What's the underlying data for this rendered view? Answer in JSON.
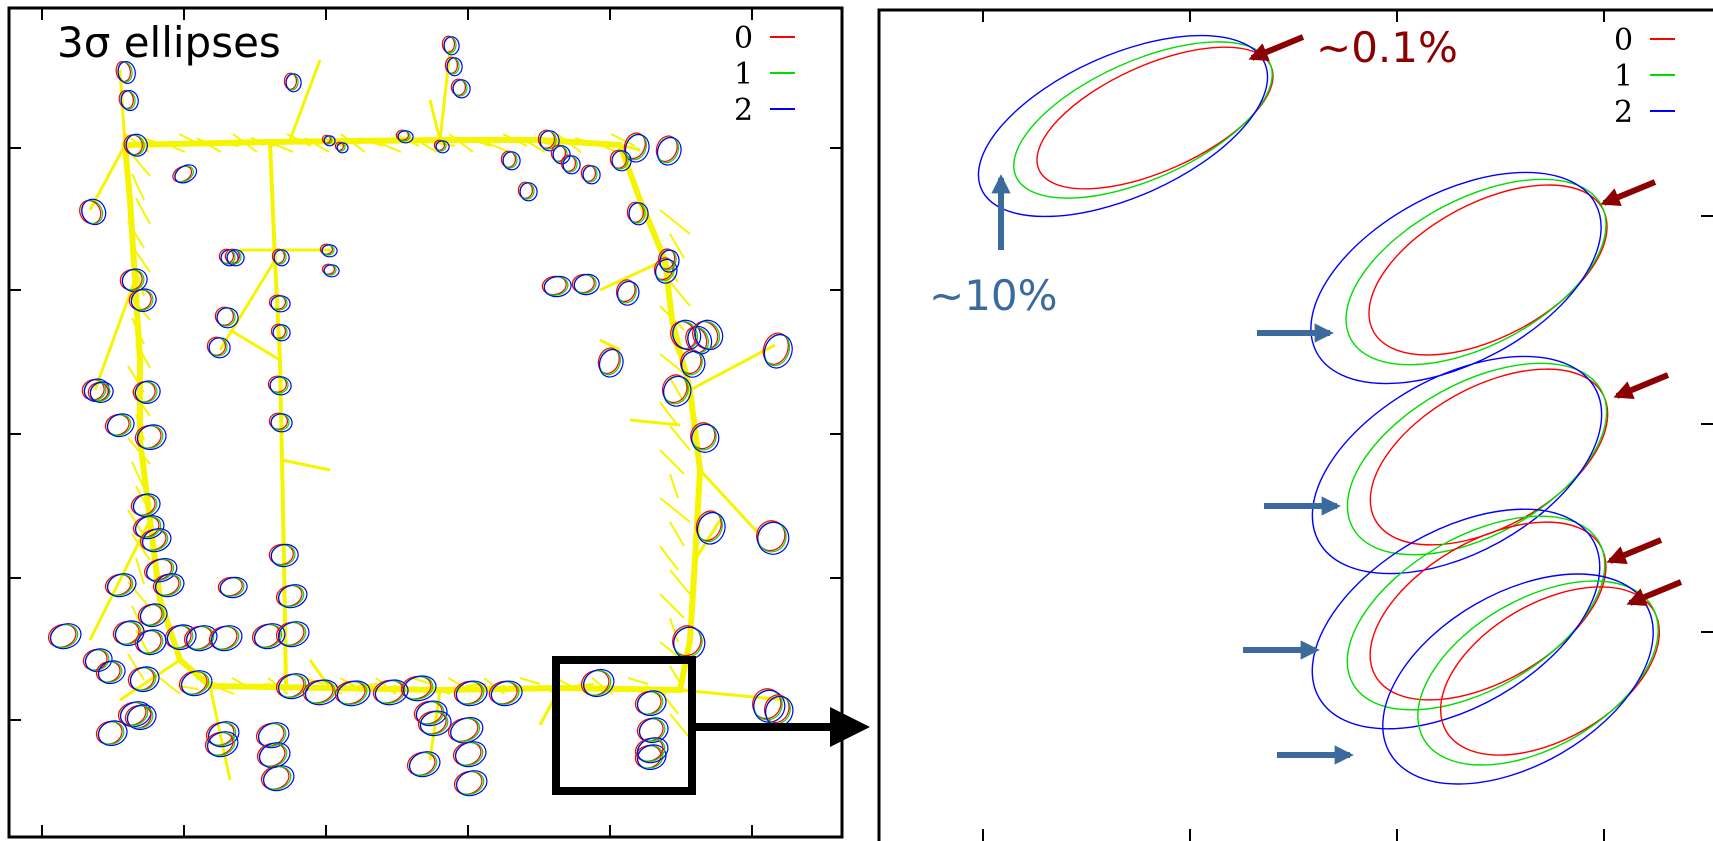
{
  "left_panel": {
    "title": "3σ ellipses",
    "legend": [
      {
        "label": "0",
        "color": "#ff0000"
      },
      {
        "label": "1",
        "color": "#00dd00"
      },
      {
        "label": "2",
        "color": "#0000ff"
      }
    ],
    "graph_edge_color": "#f5f500",
    "zoom_box_color": "#000000"
  },
  "right_panel": {
    "legend": [
      {
        "label": "0",
        "color": "#ff0000"
      },
      {
        "label": "1",
        "color": "#00dd00"
      },
      {
        "label": "2",
        "color": "#0000ff"
      }
    ],
    "annotation_red": "~0.1%",
    "annotation_blue": "~10%",
    "arrow_red_color": "#8b0000",
    "arrow_blue_color": "#3a6b9c"
  }
}
